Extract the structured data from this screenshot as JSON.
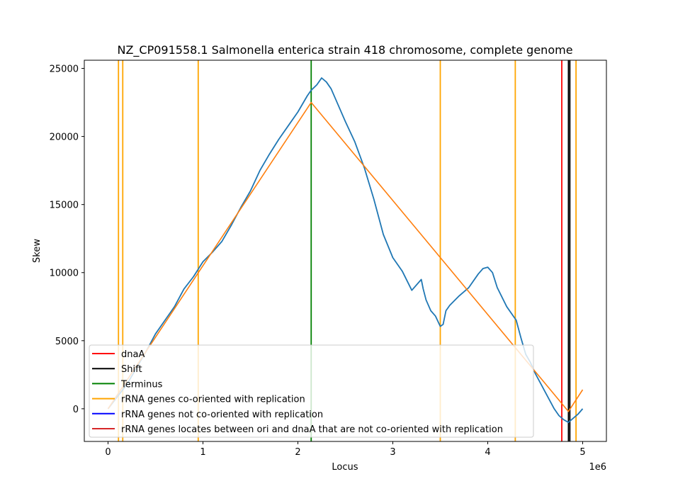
{
  "chart_data": {
    "type": "line",
    "title": "NZ_CP091558.1 Salmonella enterica strain 418 chromosome, complete genome",
    "xlabel": "Locus",
    "ylabel": "Skew",
    "x_offset_label": "1e6",
    "xlim": [
      -250000,
      5250000
    ],
    "ylim": [
      -2400,
      25600
    ],
    "xticks": [
      0,
      1000000,
      2000000,
      3000000,
      4000000,
      5000000
    ],
    "xtick_labels": [
      "0",
      "1",
      "2",
      "3",
      "4",
      "5"
    ],
    "yticks": [
      0,
      5000,
      10000,
      15000,
      20000,
      25000
    ],
    "ytick_labels": [
      "0",
      "5000",
      "10000",
      "15000",
      "20000",
      "25000"
    ],
    "grid": false,
    "legend_position": "lower-left",
    "colors": {
      "skew": "#1f77b4",
      "fit": "#ff7f0e",
      "dnaA": "#ff0000",
      "shift": "#000000",
      "terminus": "#008000",
      "rrna_co": "#ffa500",
      "rrna_not": "#0000ff",
      "rrna_between": "#d62728"
    },
    "legend": [
      {
        "label": "dnaA",
        "color": "#ff0000"
      },
      {
        "label": "Shift",
        "color": "#000000"
      },
      {
        "label": "Terminus",
        "color": "#008000"
      },
      {
        "label": "rRNA genes co-oriented with replication",
        "color": "#ffa500"
      },
      {
        "label": "rRNA genes not co-oriented with replication",
        "color": "#0000ff"
      },
      {
        "label": "rRNA genes locates between ori and dnaA that are not co-oriented with replication",
        "color": "#d62728"
      }
    ],
    "vlines": {
      "rrna_co": [
        110000,
        155000,
        950000,
        3500000,
        4290000,
        4930000
      ],
      "terminus": [
        2140000
      ],
      "dnaA": [
        4780000
      ],
      "shift": [
        4850000,
        4865000
      ]
    },
    "series": [
      {
        "x": [
          0,
          100000,
          200000,
          300000,
          400000,
          500000,
          600000,
          700000,
          800000,
          900000,
          1000000,
          1100000,
          1200000,
          1300000,
          1400000,
          1500000,
          1600000,
          1700000,
          1800000,
          1900000,
          2000000,
          2100000,
          2140000,
          2200000,
          2250000,
          2300000,
          2350000,
          2400000,
          2500000,
          2600000,
          2700000,
          2800000,
          2900000,
          3000000,
          3100000,
          3200000,
          3300000,
          3320000,
          3350000,
          3400000,
          3450000,
          3500000,
          3530000,
          3560000,
          3600000,
          3700000,
          3800000,
          3900000,
          3950000,
          4000000,
          4050000,
          4100000,
          4200000,
          4300000,
          4350000,
          4400000,
          4450000,
          4500000,
          4600000,
          4700000,
          4750000,
          4800000,
          4850000,
          4900000,
          4950000,
          5000000
        ],
        "y": [
          0,
          900,
          1800,
          3000,
          4200,
          5500,
          6500,
          7500,
          8800,
          9700,
          10800,
          11500,
          12300,
          13500,
          14800,
          16000,
          17500,
          18700,
          19800,
          20800,
          21800,
          23000,
          23400,
          23800,
          24300,
          24000,
          23500,
          22700,
          21100,
          19600,
          17700,
          15400,
          12800,
          11100,
          10100,
          8700,
          9500,
          8800,
          8000,
          7200,
          6800,
          6050,
          6200,
          7200,
          7600,
          8300,
          8900,
          9900,
          10300,
          10400,
          10000,
          8900,
          7500,
          6500,
          5200,
          4000,
          3400,
          2600,
          1300,
          0,
          -500,
          -800,
          -1000,
          -700,
          -400,
          0
        ]
      },
      {
        "x": [
          0,
          2140000,
          4850000,
          5000000
        ],
        "y": [
          0,
          22500,
          -200,
          1400
        ]
      }
    ]
  }
}
